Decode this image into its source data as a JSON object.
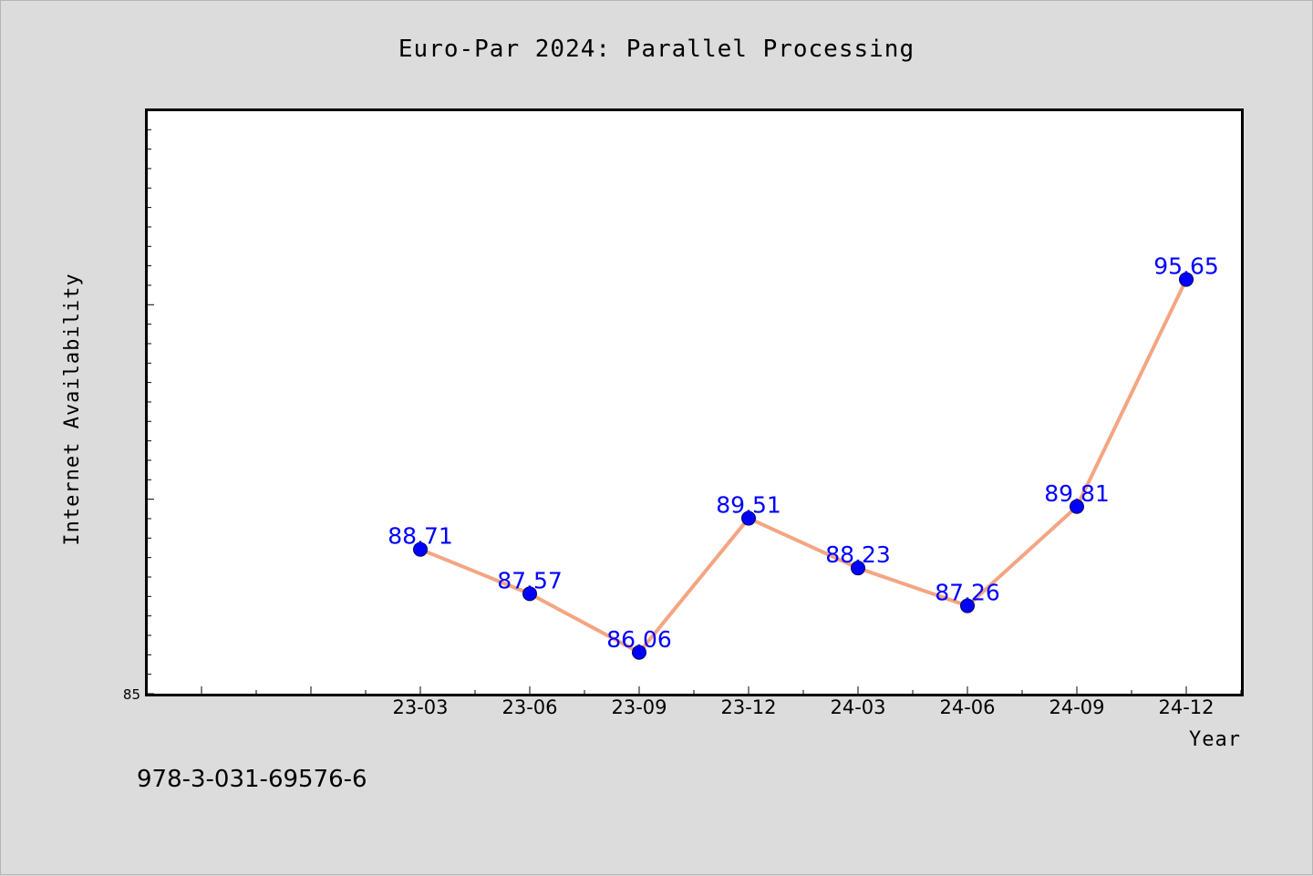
{
  "chart_data": {
    "type": "line",
    "title": "Euro-Par 2024: Parallel Processing",
    "xlabel": "Year",
    "ylabel": "Internet Availability",
    "categories": [
      "23-03",
      "23-06",
      "23-09",
      "23-12",
      "24-03",
      "24-06",
      "24-09",
      "24-12"
    ],
    "series": [
      {
        "values": [
          88.71,
          87.57,
          86.06,
          89.51,
          88.23,
          87.26,
          89.81,
          95.65
        ],
        "labels": [
          "88.71",
          "87.57",
          "86.06",
          "89.51",
          "88.23",
          "87.26",
          "89.81",
          "95.65"
        ]
      }
    ],
    "ylim": [
      85,
      100
    ],
    "yticks_labeled": [
      "85"
    ],
    "grid": false,
    "line_color": "#f4a582",
    "marker_color": "#0000ff",
    "label_color": "#0000ff"
  },
  "footer": {
    "isbn": "978-3-031-69576-6"
  }
}
